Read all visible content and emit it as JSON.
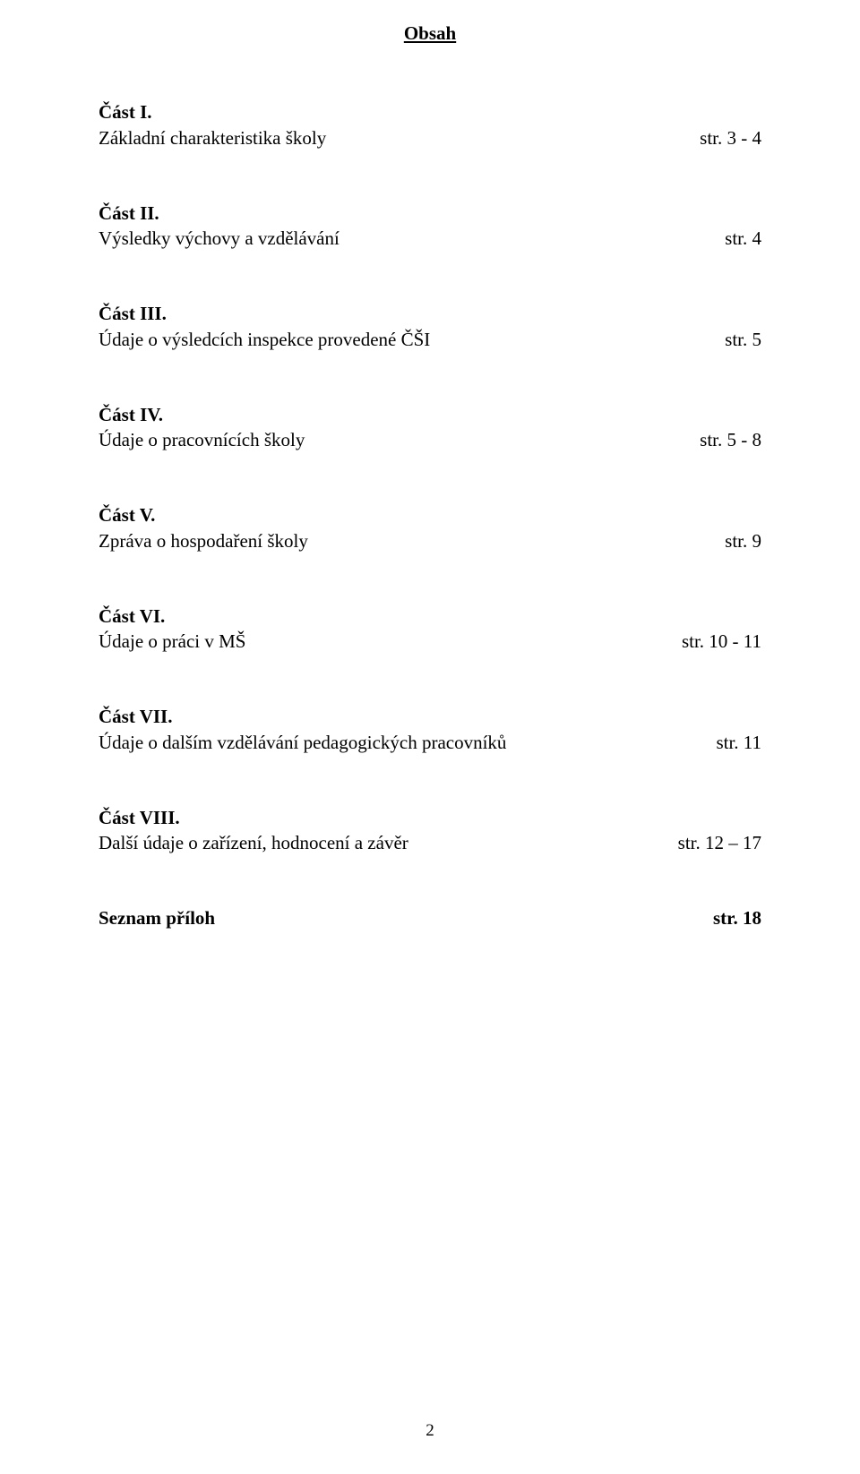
{
  "title": "Obsah",
  "sections": [
    {
      "heading": "Část I.",
      "label": "Základní charakteristika školy",
      "page": "str. 3 - 4"
    },
    {
      "heading": "Část II.",
      "label": "Výsledky výchovy a vzdělávání",
      "page": "str. 4"
    },
    {
      "heading": "Část III.",
      "label": "Údaje o výsledcích inspekce provedené ČŠI",
      "page": "str. 5"
    },
    {
      "heading": "Část IV.",
      "label": "Údaje o pracovnících školy",
      "page": "str. 5 - 8"
    },
    {
      "heading": "Část V.",
      "label": "Zpráva o hospodaření školy",
      "page": "str. 9"
    },
    {
      "heading": "Část VI.",
      "label": "Údaje o práci v MŠ",
      "page": "str. 10 - 11"
    },
    {
      "heading": "Část VII.",
      "label": "Údaje o dalším vzdělávání pedagogických pracovníků",
      "page": "str. 11"
    },
    {
      "heading": "Část VIII.",
      "label": "Další údaje o zařízení, hodnocení a závěr",
      "page": "str. 12 – 17"
    }
  ],
  "appendix": {
    "label": "Seznam příloh",
    "page": "str. 18"
  },
  "footer_page_number": "2"
}
